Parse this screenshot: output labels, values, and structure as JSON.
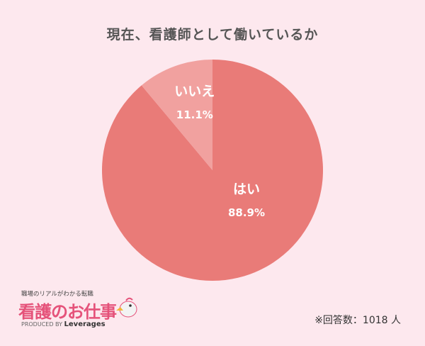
{
  "title": "現在、看護師として働いているか",
  "chart_data": {
    "type": "pie",
    "title": "現在、看護師として働いているか",
    "slices": [
      {
        "label": "はい",
        "value": 88.9,
        "value_label": "88.9%",
        "color": "#e97b78"
      },
      {
        "label": "いいえ",
        "value": 11.1,
        "value_label": "11.1%",
        "color": "#f1a19f"
      }
    ]
  },
  "logo": {
    "tagline": "職場のリアルがわかる転職",
    "name": "看護のお仕事",
    "produced_by": "PRODUCED BY",
    "company": "Leverages"
  },
  "footnote": "※回答数：1018 人",
  "colors": {
    "background": "#fde8ee",
    "accent": "#e5527a"
  }
}
